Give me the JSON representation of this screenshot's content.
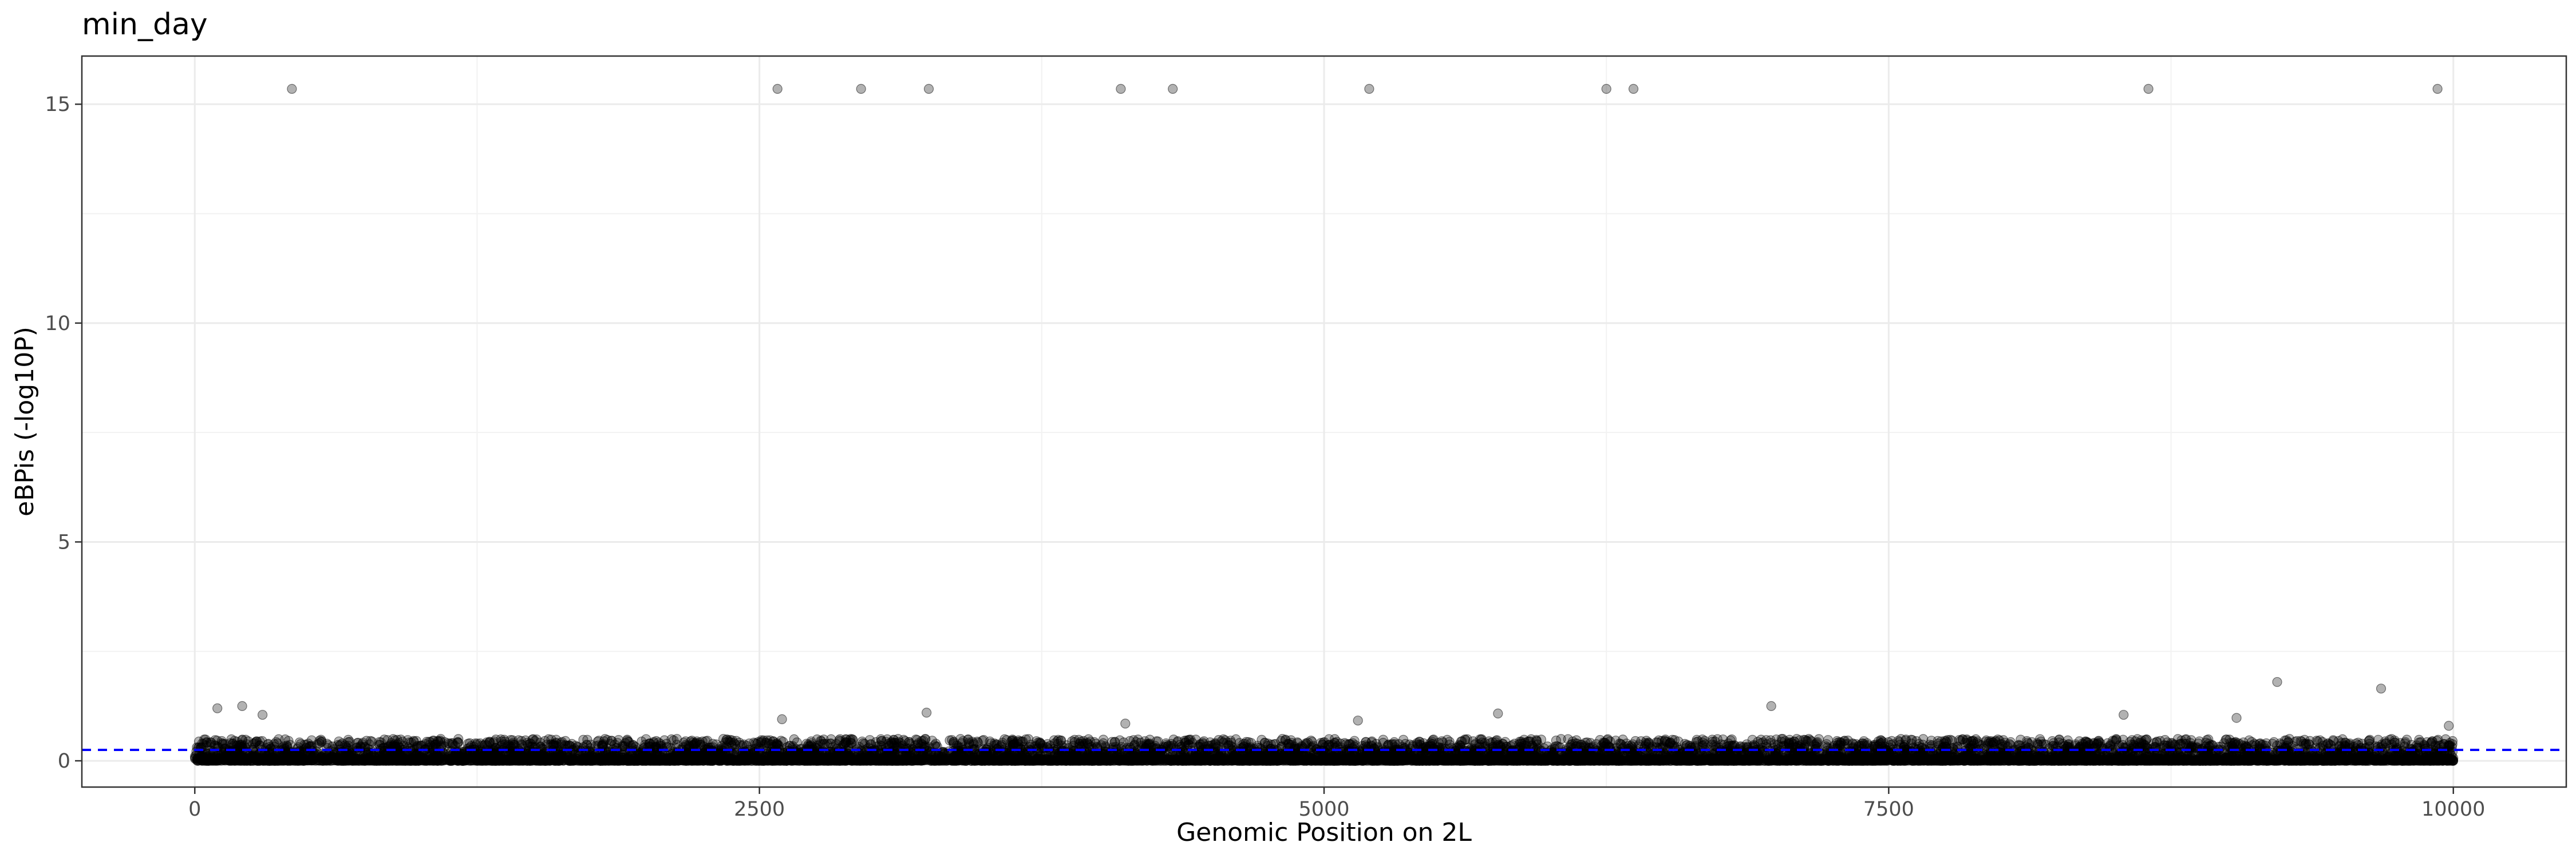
{
  "chart_data": {
    "type": "scatter",
    "title": "min_day",
    "xlabel": "Genomic Position on 2L",
    "ylabel": "eBPis (-log10P)",
    "xlim": [
      -500,
      10500
    ],
    "ylim": [
      -0.6,
      16.1
    ],
    "x_ticks": [
      0,
      2500,
      5000,
      7500,
      10000
    ],
    "x_tick_labels": [
      "0",
      "2500",
      "5000",
      "7500",
      "10000"
    ],
    "y_ticks": [
      0,
      5,
      10,
      15
    ],
    "y_tick_labels": [
      "0",
      "5",
      "10",
      "15"
    ],
    "grid": true,
    "theme": "bw",
    "point_color": "#000000",
    "point_alpha": 0.3,
    "threshold_line": {
      "y": 0.25,
      "color": "#0000ff",
      "style": "dashed"
    },
    "highlighted_points": {
      "x": [
        430,
        2580,
        2950,
        3250,
        4100,
        4330,
        5200,
        6250,
        6370,
        8650,
        9930,
        100,
        210,
        300,
        2600,
        3240,
        4120,
        5150,
        5770,
        6980,
        8540,
        9040,
        9220,
        9680,
        9980
      ],
      "y": [
        15.35,
        15.35,
        15.35,
        15.35,
        15.35,
        15.35,
        15.35,
        15.35,
        15.35,
        15.35,
        15.35,
        1.2,
        1.25,
        1.05,
        0.95,
        1.1,
        0.85,
        0.92,
        1.08,
        1.25,
        1.05,
        0.98,
        1.8,
        1.65,
        0.8
      ]
    },
    "dense_band": {
      "x_range": [
        0,
        10000
      ],
      "y_range": [
        0,
        0.5
      ],
      "n_points": 10000
    }
  }
}
